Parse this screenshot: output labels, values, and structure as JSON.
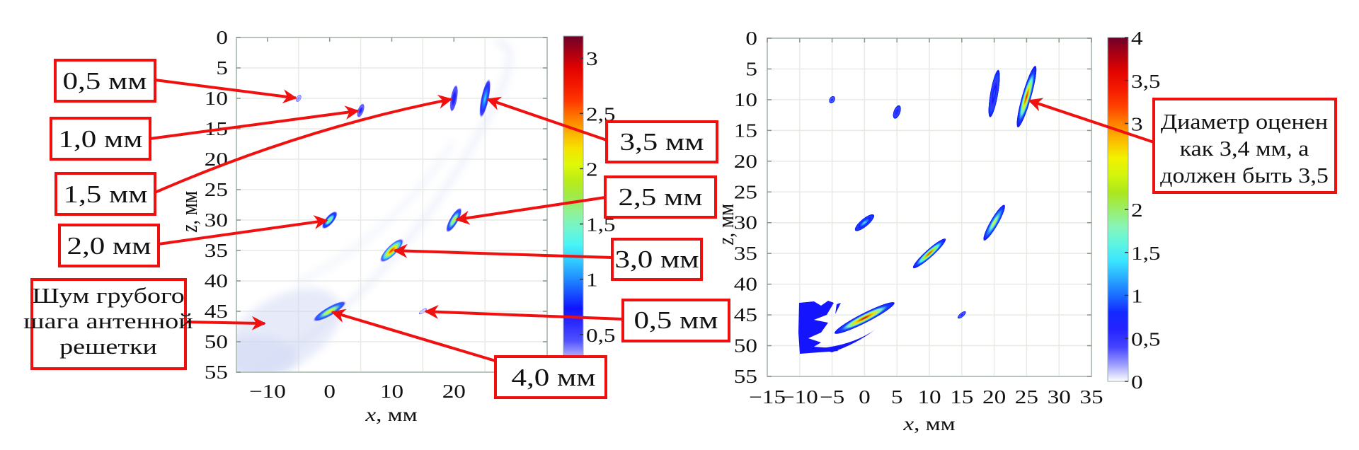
{
  "colormap": [
    "#ffffff",
    "#4a4aff",
    "#1010ff",
    "#1e8cff",
    "#3ff5ff",
    "#8cf5b4",
    "#a8e61e",
    "#f0ff00",
    "#ffa000",
    "#ff2800",
    "#e00000",
    "#6e0028"
  ],
  "annotation_color": "#f00f0f",
  "chart_data": [
    {
      "type": "heatmap",
      "xlabel_var": "x",
      "xlabel_unit": ", мм",
      "ylabel_var": "z",
      "ylabel_unit": ", мм",
      "xlim": [
        -15,
        35
      ],
      "ylim": [
        55,
        0
      ],
      "y_inverted": true,
      "grid": true,
      "xticks": [
        -10,
        0,
        10,
        20
      ],
      "xtick_labels": [
        "−10",
        "0",
        "10",
        "20"
      ],
      "yticks": [
        0,
        5,
        10,
        15,
        20,
        25,
        30,
        35,
        40,
        45,
        50,
        55
      ],
      "ytick_labels": [
        "0",
        "5",
        "10",
        "15",
        "20",
        "25",
        "30",
        "35",
        "40",
        "45",
        "50",
        "55"
      ],
      "colorbar": {
        "range": [
          0.3,
          3.2
        ],
        "ticks": [
          0.5,
          1,
          1.5,
          2,
          2.5,
          3
        ],
        "tick_labels": [
          "0,5",
          "1",
          "1,5",
          "2",
          "2,5",
          "3"
        ],
        "placement": "right"
      },
      "reflectors": [
        {
          "x": -5,
          "z": 10,
          "peak": 0.5
        },
        {
          "x": 5,
          "z": 12,
          "peak": 0.8
        },
        {
          "x": 20,
          "z": 10,
          "peak": 0.9
        },
        {
          "x": 25,
          "z": 10,
          "peak": 1.3
        },
        {
          "x": 0,
          "z": 30,
          "peak": 1.8
        },
        {
          "x": 20,
          "z": 30,
          "peak": 2.0
        },
        {
          "x": 10,
          "z": 35,
          "peak": 2.8
        },
        {
          "x": 15,
          "z": 45,
          "peak": 0.4
        },
        {
          "x": 0,
          "z": 45,
          "peak": 2.1
        }
      ],
      "annotations": [
        {
          "text": "0,5 мм",
          "target": [
            -5,
            10
          ]
        },
        {
          "text": "1,0 мм",
          "target": [
            5,
            12
          ]
        },
        {
          "text": "1,5 мм",
          "target": [
            20,
            10
          ]
        },
        {
          "text": "2,0 мм",
          "target": [
            0,
            30
          ]
        },
        {
          "lines": [
            "Шум грубого",
            "шага антенной",
            "решетки"
          ],
          "target": [
            -10,
            47
          ]
        },
        {
          "text": "3,5 мм",
          "target": [
            25,
            10
          ]
        },
        {
          "text": "2,5 мм",
          "target": [
            20,
            30
          ]
        },
        {
          "text": "3,0 мм",
          "target": [
            10,
            35
          ]
        },
        {
          "text": "0,5 мм",
          "target": [
            15,
            45
          ]
        },
        {
          "text": "4,0 мм",
          "target": [
            0,
            45
          ]
        }
      ]
    },
    {
      "type": "heatmap",
      "xlabel_var": "x",
      "xlabel_unit": ", мм",
      "ylabel_var": "z",
      "ylabel_unit": ", мм",
      "xlim": [
        -15,
        35
      ],
      "ylim": [
        55,
        0
      ],
      "y_inverted": true,
      "grid": true,
      "xticks": [
        -15,
        -10,
        -5,
        0,
        5,
        10,
        15,
        20,
        25,
        30,
        35
      ],
      "xtick_labels": [
        "−15",
        "−10",
        "−5",
        "0",
        "5",
        "10",
        "15",
        "20",
        "25",
        "30",
        "35"
      ],
      "yticks": [
        0,
        5,
        10,
        15,
        20,
        25,
        30,
        35,
        40,
        45,
        50,
        55
      ],
      "ytick_labels": [
        "0",
        "5",
        "10",
        "15",
        "20",
        "25",
        "30",
        "35",
        "40",
        "45",
        "50",
        "55"
      ],
      "colorbar": {
        "range": [
          0,
          4
        ],
        "ticks": [
          0,
          0.5,
          1,
          1.5,
          2,
          3,
          3.5,
          4
        ],
        "tick_labels": [
          "0",
          "0,5",
          "1",
          "1,5",
          "2",
          "3",
          "3,5",
          "4"
        ],
        "placement": "right"
      },
      "reflectors": [
        {
          "x": -5,
          "z": 10,
          "peak": 0.7
        },
        {
          "x": 5,
          "z": 12,
          "peak": 0.9
        },
        {
          "x": 20,
          "z": 9,
          "peak": 1.0
        },
        {
          "x": 25,
          "z": 9.5,
          "peak": 3.5
        },
        {
          "x": 0,
          "z": 30,
          "peak": 1.5
        },
        {
          "x": 20,
          "z": 30,
          "peak": 2.5
        },
        {
          "x": 10,
          "z": 35,
          "peak": 3.3
        },
        {
          "x": 15,
          "z": 45,
          "peak": 0.7
        },
        {
          "x": 0,
          "z": 45.5,
          "peak": 3.8
        }
      ],
      "annotations": [
        {
          "lines": [
            "Диаметр оценен",
            "как 3,4 мм, а",
            "должен быть 3,5"
          ],
          "target": [
            25,
            10
          ]
        }
      ]
    }
  ]
}
